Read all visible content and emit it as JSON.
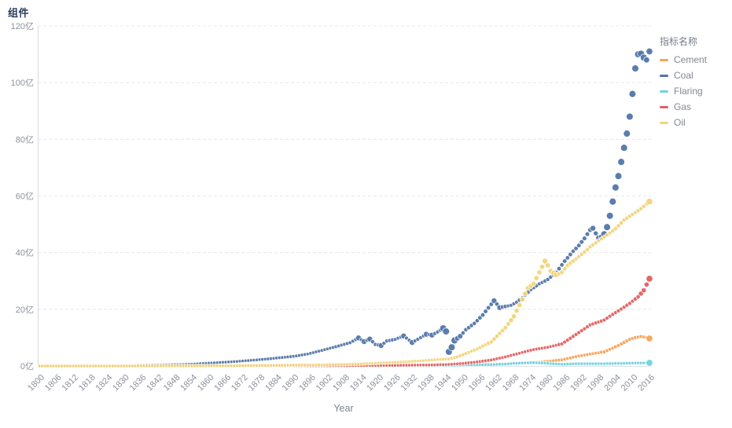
{
  "title": "组件",
  "legend": {
    "title": "指标名称",
    "items": [
      {
        "label": "Cement",
        "color": "#f7a456"
      },
      {
        "label": "Coal",
        "color": "#5276a9"
      },
      {
        "label": "Flaring",
        "color": "#6fd2e0"
      },
      {
        "label": "Gas",
        "color": "#e36060"
      },
      {
        "label": "Oil",
        "color": "#f2d478"
      }
    ]
  },
  "axes": {
    "x_label": "Year",
    "y_tick_labels": [
      "0亿",
      "20亿",
      "40亿",
      "60亿",
      "80亿",
      "100亿",
      "120亿"
    ],
    "x_tick_labels": [
      "1800",
      "1806",
      "1812",
      "1818",
      "1824",
      "1830",
      "1836",
      "1842",
      "1848",
      "1854",
      "1860",
      "1866",
      "1872",
      "1878",
      "1884",
      "1890",
      "1896",
      "1902",
      "1908",
      "1914",
      "1920",
      "1926",
      "1932",
      "1938",
      "1944",
      "1950",
      "1956",
      "1962",
      "1968",
      "1974",
      "1980",
      "1986",
      "1992",
      "1998",
      "2004",
      "2010",
      "2016"
    ]
  },
  "chart_data": {
    "type": "scatter",
    "title": "组件",
    "xlabel": "Year",
    "ylabel": "亿",
    "x_range": [
      1800,
      2016
    ],
    "x_tick_step": 6,
    "ylim": [
      0,
      120
    ],
    "y_tick_step": 20,
    "grid": "horizontal-dashed",
    "legend_position": "right",
    "sampling": "annual",
    "series": [
      {
        "name": "Cement",
        "color": "#f7a456",
        "anchors": [
          [
            1800,
            0
          ],
          [
            1890,
            0.02
          ],
          [
            1900,
            0.05
          ],
          [
            1910,
            0.08
          ],
          [
            1920,
            0.1
          ],
          [
            1930,
            0.15
          ],
          [
            1940,
            0.2
          ],
          [
            1950,
            0.3
          ],
          [
            1955,
            0.45
          ],
          [
            1960,
            0.6
          ],
          [
            1965,
            0.8
          ],
          [
            1970,
            1.0
          ],
          [
            1975,
            1.3
          ],
          [
            1980,
            1.6
          ],
          [
            1985,
            2.2
          ],
          [
            1990,
            3.3
          ],
          [
            1995,
            4.2
          ],
          [
            2000,
            5.0
          ],
          [
            2003,
            6.3
          ],
          [
            2005,
            7.2
          ],
          [
            2007,
            8.3
          ],
          [
            2009,
            9.4
          ],
          [
            2011,
            10.0
          ],
          [
            2013,
            10.4
          ],
          [
            2015,
            10.0
          ],
          [
            2016,
            9.7
          ]
        ]
      },
      {
        "name": "Coal",
        "color": "#5276a9",
        "anchors": [
          [
            1800,
            0.08
          ],
          [
            1810,
            0.1
          ],
          [
            1820,
            0.15
          ],
          [
            1830,
            0.22
          ],
          [
            1840,
            0.32
          ],
          [
            1850,
            0.5
          ],
          [
            1855,
            0.7
          ],
          [
            1860,
            1.0
          ],
          [
            1870,
            1.6
          ],
          [
            1880,
            2.4
          ],
          [
            1885,
            2.9
          ],
          [
            1890,
            3.4
          ],
          [
            1895,
            4.2
          ],
          [
            1900,
            5.5
          ],
          [
            1905,
            6.8
          ],
          [
            1910,
            8.2
          ],
          [
            1913,
            9.9
          ],
          [
            1915,
            8.6
          ],
          [
            1917,
            9.5
          ],
          [
            1919,
            7.6
          ],
          [
            1921,
            7.2
          ],
          [
            1923,
            8.8
          ],
          [
            1926,
            9.4
          ],
          [
            1929,
            10.6
          ],
          [
            1932,
            8.3
          ],
          [
            1935,
            10.0
          ],
          [
            1937,
            11.2
          ],
          [
            1939,
            10.9
          ],
          [
            1941,
            12.0
          ],
          [
            1943,
            13.3
          ],
          [
            1944,
            12.2
          ],
          [
            1945,
            5.0
          ],
          [
            1946,
            6.6
          ],
          [
            1947,
            9.0
          ],
          [
            1949,
            10.5
          ],
          [
            1951,
            12.8
          ],
          [
            1954,
            15.0
          ],
          [
            1957,
            18.0
          ],
          [
            1959,
            20.5
          ],
          [
            1961,
            23.0
          ],
          [
            1963,
            20.6
          ],
          [
            1965,
            21.0
          ],
          [
            1967,
            21.4
          ],
          [
            1969,
            22.5
          ],
          [
            1971,
            24.0
          ],
          [
            1974,
            27.0
          ],
          [
            1977,
            29.0
          ],
          [
            1980,
            30.5
          ],
          [
            1983,
            33.0
          ],
          [
            1986,
            37.0
          ],
          [
            1989,
            40.5
          ],
          [
            1991,
            42.5
          ],
          [
            1993,
            45.0
          ],
          [
            1995,
            48.0
          ],
          [
            1996,
            48.6
          ],
          [
            1997,
            46.8
          ],
          [
            1998,
            45.2
          ],
          [
            1999,
            45.6
          ],
          [
            2000,
            46.5
          ],
          [
            2001,
            49.0
          ],
          [
            2002,
            53.0
          ],
          [
            2003,
            58.0
          ],
          [
            2004,
            63.0
          ],
          [
            2005,
            67.0
          ],
          [
            2006,
            72.0
          ],
          [
            2007,
            77.0
          ],
          [
            2008,
            82.0
          ],
          [
            2009,
            88.0
          ],
          [
            2010,
            96.0
          ],
          [
            2011,
            105.0
          ],
          [
            2012,
            110.0
          ],
          [
            2013,
            110.2
          ],
          [
            2014,
            108.8
          ],
          [
            2015,
            108.0
          ],
          [
            2016,
            111.0
          ]
        ]
      },
      {
        "name": "Flaring",
        "color": "#6fd2e0",
        "anchors": [
          [
            1800,
            0
          ],
          [
            1920,
            0
          ],
          [
            1930,
            0.05
          ],
          [
            1940,
            0.1
          ],
          [
            1950,
            0.3
          ],
          [
            1960,
            0.5
          ],
          [
            1965,
            0.7
          ],
          [
            1970,
            1.0
          ],
          [
            1975,
            1.2
          ],
          [
            1980,
            0.9
          ],
          [
            1985,
            0.6
          ],
          [
            1990,
            0.8
          ],
          [
            2000,
            0.8
          ],
          [
            2005,
            0.9
          ],
          [
            2010,
            1.0
          ],
          [
            2016,
            1.1
          ]
        ]
      },
      {
        "name": "Gas",
        "color": "#e36060",
        "anchors": [
          [
            1800,
            0
          ],
          [
            1880,
            0.02
          ],
          [
            1890,
            0.05
          ],
          [
            1900,
            0.08
          ],
          [
            1910,
            0.12
          ],
          [
            1920,
            0.18
          ],
          [
            1930,
            0.25
          ],
          [
            1940,
            0.4
          ],
          [
            1945,
            0.55
          ],
          [
            1950,
            0.9
          ],
          [
            1955,
            1.4
          ],
          [
            1960,
            2.1
          ],
          [
            1965,
            3.2
          ],
          [
            1970,
            4.5
          ],
          [
            1975,
            5.8
          ],
          [
            1980,
            6.6
          ],
          [
            1985,
            7.8
          ],
          [
            1990,
            11.1
          ],
          [
            1995,
            14.5
          ],
          [
            2000,
            16.2
          ],
          [
            2003,
            18.2
          ],
          [
            2006,
            20.1
          ],
          [
            2009,
            22.1
          ],
          [
            2012,
            24.4
          ],
          [
            2014,
            26.7
          ],
          [
            2016,
            30.8
          ]
        ]
      },
      {
        "name": "Oil",
        "color": "#f2d478",
        "anchors": [
          [
            1800,
            0
          ],
          [
            1850,
            0.02
          ],
          [
            1860,
            0.05
          ],
          [
            1870,
            0.1
          ],
          [
            1880,
            0.2
          ],
          [
            1890,
            0.3
          ],
          [
            1900,
            0.4
          ],
          [
            1910,
            0.6
          ],
          [
            1920,
            1.0
          ],
          [
            1930,
            1.5
          ],
          [
            1935,
            1.8
          ],
          [
            1940,
            2.2
          ],
          [
            1945,
            2.5
          ],
          [
            1948,
            3.2
          ],
          [
            1950,
            4.0
          ],
          [
            1955,
            6.0
          ],
          [
            1960,
            8.5
          ],
          [
            1965,
            13.5
          ],
          [
            1968,
            17.5
          ],
          [
            1970,
            21.5
          ],
          [
            1973,
            27.5
          ],
          [
            1975,
            29.0
          ],
          [
            1977,
            33.0
          ],
          [
            1979,
            37.0
          ],
          [
            1980,
            35.5
          ],
          [
            1981,
            33.5
          ],
          [
            1983,
            32.2
          ],
          [
            1985,
            33.0
          ],
          [
            1987,
            35.5
          ],
          [
            1990,
            37.8
          ],
          [
            1993,
            40.2
          ],
          [
            1995,
            42.0
          ],
          [
            1998,
            44.2
          ],
          [
            2001,
            46.2
          ],
          [
            2004,
            48.4
          ],
          [
            2007,
            51.5
          ],
          [
            2010,
            53.5
          ],
          [
            2013,
            55.5
          ],
          [
            2016,
            58.0
          ]
        ]
      }
    ]
  }
}
